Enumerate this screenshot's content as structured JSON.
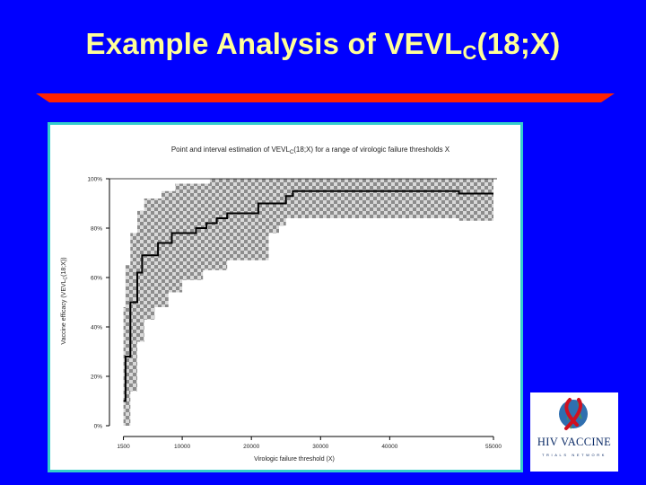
{
  "slide": {
    "title_main": "Example Analysis of VEVL",
    "title_sub": "C",
    "title_tail": "(18;X)"
  },
  "colors": {
    "background": "#0000ff",
    "title": "#ffff99",
    "rule_red": "#ff2200",
    "frame": "#33cccc",
    "band_dark": "#8c8c8c",
    "band_light": "#d9d9d9"
  },
  "chart_data": {
    "type": "line",
    "title_parts": [
      "Point and interval estimation of VEVL",
      "C",
      "(18;X) for a range of virologic failure thresholds X"
    ],
    "xlabel": "Virologic failure threshold (X)",
    "ylabel_parts": [
      "Vaccine efficacy (VEVL",
      "C",
      "(18;X))"
    ],
    "xlim": [
      0,
      55000
    ],
    "ylim": [
      0,
      100
    ],
    "x_ticks": [
      1500,
      10000,
      20000,
      30000,
      40000,
      55000
    ],
    "x_tick_labels": [
      "1500",
      "10000",
      "20000",
      "30000",
      "40000",
      "55000"
    ],
    "y_ticks": [
      0,
      20,
      40,
      60,
      80,
      100
    ],
    "y_tick_labels": [
      "0%",
      "20%",
      "40%",
      "60%",
      "80%",
      "100%"
    ],
    "estimate": {
      "x": [
        1500,
        1800,
        2500,
        3500,
        4200,
        5000,
        6500,
        8500,
        10000,
        11000,
        12000,
        13500,
        15000,
        16500,
        18000,
        19500,
        21000,
        23000,
        24000,
        25000,
        26000,
        30000,
        40000,
        50000,
        55000
      ],
      "y": [
        10,
        28,
        50,
        62,
        69,
        69,
        74,
        78,
        78,
        78,
        80,
        82,
        84,
        86,
        86,
        86,
        90,
        90,
        90,
        93,
        95,
        95,
        95,
        94,
        94
      ]
    },
    "ci_upper": {
      "x": [
        1500,
        1800,
        2500,
        3500,
        4500,
        5500,
        7000,
        9000,
        10000,
        12000,
        14000,
        15500,
        17000,
        19000,
        20500,
        22000,
        25000,
        30000,
        40000,
        50000,
        55000
      ],
      "y": [
        48,
        65,
        78,
        87,
        92,
        92,
        95,
        98,
        98,
        98,
        100,
        100,
        100,
        100,
        100,
        100,
        100,
        100,
        100,
        100,
        100
      ]
    },
    "ci_lower": {
      "x": [
        1500,
        1800,
        2500,
        3500,
        4500,
        6000,
        8000,
        10000,
        12000,
        13000,
        15000,
        16500,
        18000,
        19500,
        21000,
        22500,
        24000,
        25000,
        26000,
        30000,
        40000,
        50000,
        55000
      ],
      "y": [
        0,
        0,
        14,
        34,
        43,
        48,
        54,
        59,
        59,
        63,
        63,
        67,
        67,
        67,
        67,
        78,
        81,
        84,
        84,
        84,
        84,
        83,
        83
      ]
    }
  },
  "logo": {
    "name": "HIV VACCINE",
    "sub": "TRIALS NETWORK"
  }
}
